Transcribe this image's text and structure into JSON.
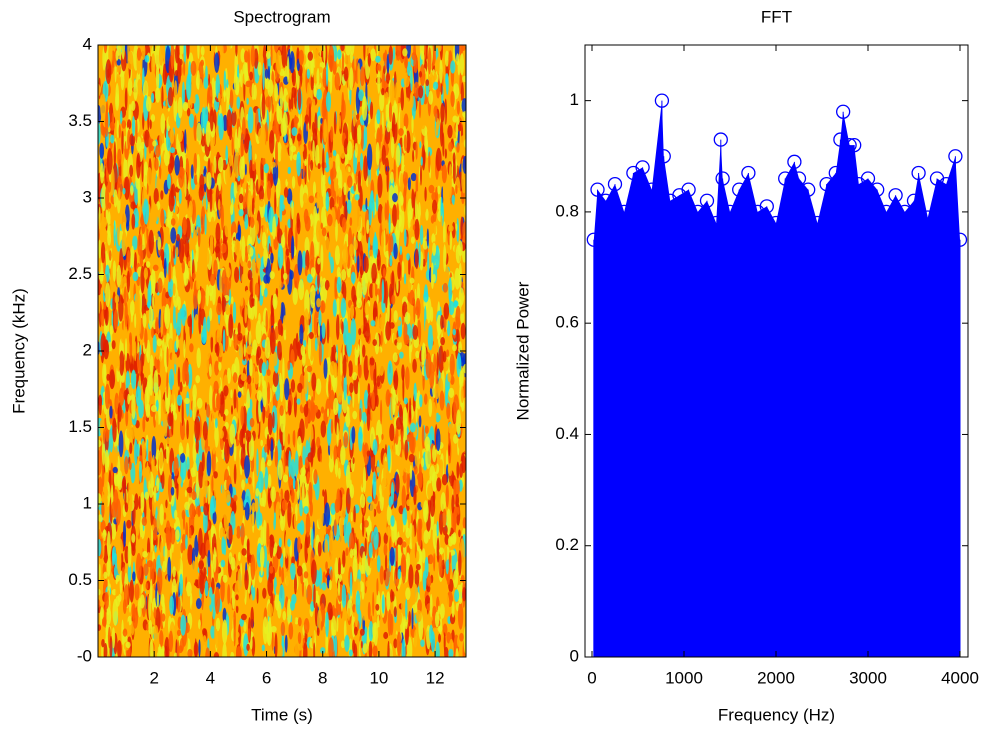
{
  "chart_data": [
    {
      "type": "heatmap",
      "title": "Spectrogram",
      "x_label": "Time (s)",
      "y_label": "Frequency (kHz)",
      "xlim": [
        0,
        13.1
      ],
      "xticks": [
        2,
        4,
        6,
        8,
        10,
        12
      ],
      "ylim": [
        0,
        4
      ],
      "yticks": [
        {
          "value": 0,
          "label": "-0"
        },
        0.5,
        1,
        1.5,
        2,
        2.5,
        3,
        3.5,
        4
      ],
      "colormap": [
        "#0030d0",
        "#20e0e0",
        "#e8f020",
        "#ffb000",
        "#ff6000",
        "#e02000"
      ]
    },
    {
      "type": "stem",
      "title": "FFT",
      "x_label": "Frequency (Hz)",
      "y_label": "Normalized Power",
      "xlim": [
        -76,
        4087
      ],
      "xticks": [
        0,
        1000,
        2000,
        3000,
        4000
      ],
      "ylim": [
        0,
        1.1
      ],
      "yticks": [
        0,
        0.2,
        0.4,
        0.6,
        0.8,
        1
      ],
      "color": "#0000ff",
      "x": [
        20,
        60,
        150,
        250,
        350,
        450,
        550,
        650,
        760,
        780,
        850,
        950,
        1050,
        1150,
        1250,
        1350,
        1400,
        1420,
        1500,
        1600,
        1700,
        1800,
        1900,
        2000,
        2100,
        2200,
        2250,
        2350,
        2450,
        2550,
        2650,
        2700,
        2730,
        2800,
        2850,
        2900,
        3000,
        3100,
        3200,
        3300,
        3400,
        3500,
        3550,
        3650,
        3750,
        3850,
        3950,
        4000
      ],
      "values": [
        0.75,
        0.84,
        0.82,
        0.85,
        0.8,
        0.87,
        0.88,
        0.84,
        1.0,
        0.9,
        0.82,
        0.83,
        0.84,
        0.8,
        0.82,
        0.78,
        0.93,
        0.86,
        0.8,
        0.84,
        0.87,
        0.8,
        0.81,
        0.78,
        0.86,
        0.89,
        0.86,
        0.84,
        0.78,
        0.85,
        0.87,
        0.93,
        0.98,
        0.92,
        0.92,
        0.85,
        0.86,
        0.84,
        0.8,
        0.83,
        0.8,
        0.82,
        0.87,
        0.79,
        0.86,
        0.85,
        0.9,
        0.75
      ]
    }
  ]
}
